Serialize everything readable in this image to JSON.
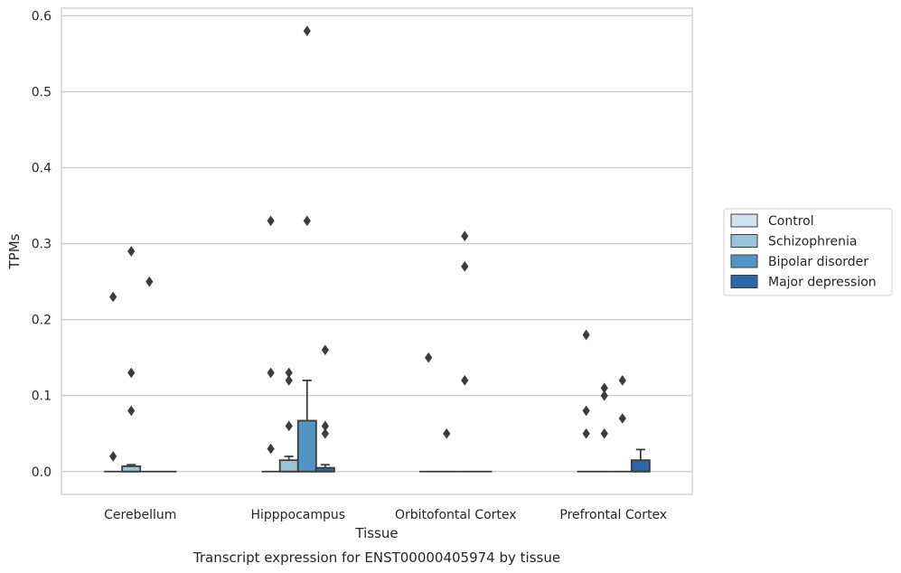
{
  "chart_data": {
    "type": "box",
    "title": "",
    "caption": "Transcript expression for ENST00000405974 by tissue",
    "xlabel": "Tissue",
    "ylabel": "TPMs",
    "ylim": [
      -0.03,
      0.61
    ],
    "yticks": [
      0.0,
      0.1,
      0.2,
      0.3,
      0.4,
      0.5,
      0.6
    ],
    "ytick_labels": [
      "0.0",
      "0.1",
      "0.2",
      "0.3",
      "0.4",
      "0.5",
      "0.6"
    ],
    "grid": "horizontal",
    "legend_position": "right",
    "categories": [
      "Cerebellum",
      "Hipppocampus",
      "Orbitofontal Cortex",
      "Prefrontal Cortex"
    ],
    "series": [
      {
        "name": "Control",
        "color": "#d0e1f2",
        "boxes": [
          {
            "q1": 0,
            "median": 0,
            "q3": 0,
            "whislo": 0,
            "whishi": 0,
            "fliers": [
              0.23,
              0.02
            ]
          },
          {
            "q1": 0,
            "median": 0,
            "q3": 0,
            "whislo": 0,
            "whishi": 0,
            "fliers": [
              0.33,
              0.13,
              0.03
            ]
          },
          {
            "q1": 0,
            "median": 0,
            "q3": 0,
            "whislo": 0,
            "whishi": 0,
            "fliers": [
              0.15
            ]
          },
          {
            "q1": 0,
            "median": 0,
            "q3": 0,
            "whislo": 0,
            "whishi": 0,
            "fliers": [
              0.18,
              0.08,
              0.05
            ]
          }
        ]
      },
      {
        "name": "Schizophrenia",
        "color": "#9ac3dc",
        "boxes": [
          {
            "q1": 0,
            "median": 0,
            "q3": 0.007,
            "whislo": 0,
            "whishi": 0.009,
            "fliers": [
              0.29,
              0.13,
              0.08
            ]
          },
          {
            "q1": 0,
            "median": 0,
            "q3": 0.015,
            "whislo": 0,
            "whishi": 0.02,
            "fliers": [
              0.13,
              0.12,
              0.06
            ]
          },
          {
            "q1": 0,
            "median": 0,
            "q3": 0,
            "whislo": 0,
            "whishi": 0,
            "fliers": [
              0.05
            ]
          },
          {
            "q1": 0,
            "median": 0,
            "q3": 0,
            "whislo": 0,
            "whishi": 0,
            "fliers": [
              0.11,
              0.1,
              0.05
            ]
          }
        ]
      },
      {
        "name": "Bipolar disorder",
        "color": "#5295c4",
        "boxes": [
          {
            "q1": 0,
            "median": 0,
            "q3": 0,
            "whislo": 0,
            "whishi": 0,
            "fliers": [
              0.25
            ]
          },
          {
            "q1": 0,
            "median": 0,
            "q3": 0.067,
            "whislo": 0,
            "whishi": 0.12,
            "fliers": [
              0.58,
              0.33
            ]
          },
          {
            "q1": 0,
            "median": 0,
            "q3": 0,
            "whislo": 0,
            "whishi": 0,
            "fliers": [
              0.31,
              0.27,
              0.12
            ]
          },
          {
            "q1": 0,
            "median": 0,
            "q3": 0,
            "whislo": 0,
            "whishi": 0,
            "fliers": [
              0.12,
              0.07
            ]
          }
        ]
      },
      {
        "name": "Major depression",
        "color": "#2b68a5",
        "boxes": [
          {
            "q1": 0,
            "median": 0,
            "q3": 0,
            "whislo": 0,
            "whishi": 0,
            "fliers": []
          },
          {
            "q1": 0,
            "median": 0,
            "q3": 0.005,
            "whislo": 0,
            "whishi": 0.009,
            "fliers": [
              0.16,
              0.06,
              0.05
            ]
          },
          {
            "q1": 0,
            "median": 0,
            "q3": 0,
            "whislo": 0,
            "whishi": 0,
            "fliers": []
          },
          {
            "q1": 0,
            "median": 0,
            "q3": 0.015,
            "whislo": 0,
            "whishi": 0.029,
            "fliers": []
          }
        ]
      }
    ]
  }
}
